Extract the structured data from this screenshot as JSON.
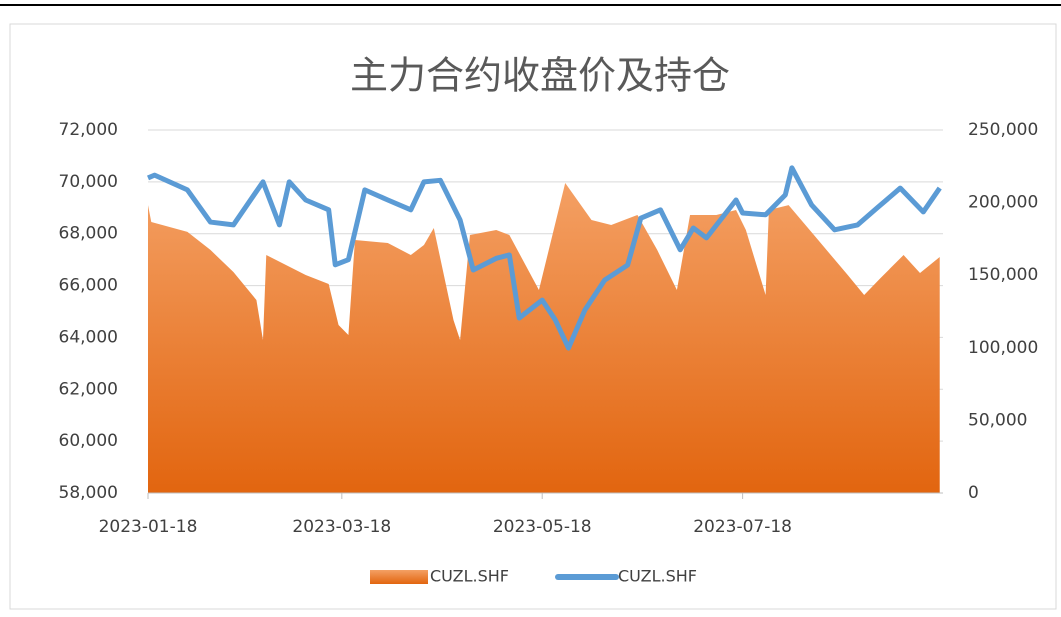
{
  "chart_data": {
    "type": "area+line",
    "title": "主力合约收盘价及持仓",
    "xlim": [
      "2023-01-18",
      "2023-09-17"
    ],
    "xticks": [
      "2023-01-18",
      "2023-03-18",
      "2023-05-18",
      "2023-07-18"
    ],
    "ylim": [
      58000,
      72000
    ],
    "yticks": [
      {
        "value": 58000,
        "label": "58,000"
      },
      {
        "value": 60000,
        "label": "60,000"
      },
      {
        "value": 62000,
        "label": "62,000"
      },
      {
        "value": 64000,
        "label": "64,000"
      },
      {
        "value": 66000,
        "label": "66,000"
      },
      {
        "value": 68000,
        "label": "68,000"
      },
      {
        "value": 70000,
        "label": "70,000"
      },
      {
        "value": 72000,
        "label": "72,000"
      }
    ],
    "y2lim": [
      0,
      250000
    ],
    "y2ticks": [
      0,
      {
        "value": 50000,
        "label": "50,000"
      },
      {
        "value": 100000,
        "label": "100,000"
      },
      {
        "value": 150000,
        "label": "150,000"
      },
      {
        "value": 200000,
        "label": "200,000"
      },
      {
        "value": 250000,
        "label": "250,000"
      }
    ],
    "series": [
      {
        "name": "CUZL.SHF",
        "type": "area",
        "axis": "y2",
        "color": "#ee7b30",
        "x": [
          "2023-01-18",
          "2023-01-19",
          "2023-01-30",
          "2023-02-06",
          "2023-02-13",
          "2023-02-20",
          "2023-02-22",
          "2023-02-23",
          "2023-03-07",
          "2023-03-14",
          "2023-03-17",
          "2023-03-20",
          "2023-03-22",
          "2023-04-01",
          "2023-04-08",
          "2023-04-12",
          "2023-04-15",
          "2023-04-21",
          "2023-04-23",
          "2023-04-26",
          "2023-05-04",
          "2023-05-08",
          "2023-05-17",
          "2023-05-25",
          "2023-06-02",
          "2023-06-08",
          "2023-06-16",
          "2023-06-22",
          "2023-06-28",
          "2023-07-02",
          "2023-07-10",
          "2023-07-16",
          "2023-07-19",
          "2023-07-25",
          "2023-07-26",
          "2023-08-01",
          "2023-08-10",
          "2023-08-19",
          "2023-08-24",
          "2023-08-29",
          "2023-09-05",
          "2023-09-10",
          "2023-09-16"
        ],
        "values": [
          198300,
          186600,
          179800,
          167400,
          152200,
          132900,
          105400,
          163900,
          150100,
          143900,
          115700,
          108800,
          174200,
          172200,
          163900,
          170800,
          182500,
          119100,
          105400,
          177700,
          181100,
          177700,
          139800,
          213500,
          188000,
          184600,
          191500,
          167400,
          139800,
          191500,
          191500,
          194900,
          181100,
          136400,
          194900,
          198300,
          174200,
          150100,
          136400,
          148100,
          163900,
          151500,
          162500
        ]
      },
      {
        "name": "CUZL.SHF",
        "type": "line",
        "axis": "y",
        "color": "#5b9bd5",
        "x": [
          "2023-01-18",
          "2023-01-20",
          "2023-01-30",
          "2023-02-06",
          "2023-02-13",
          "2023-02-22",
          "2023-02-27",
          "2023-03-02",
          "2023-03-07",
          "2023-03-14",
          "2023-03-16",
          "2023-03-20",
          "2023-03-25",
          "2023-04-01",
          "2023-04-08",
          "2023-04-12",
          "2023-04-17",
          "2023-04-23",
          "2023-04-27",
          "2023-05-04",
          "2023-05-08",
          "2023-05-11",
          "2023-05-18",
          "2023-05-22",
          "2023-05-26",
          "2023-05-31",
          "2023-06-06",
          "2023-06-13",
          "2023-06-17",
          "2023-06-23",
          "2023-06-29",
          "2023-07-03",
          "2023-07-07",
          "2023-07-16",
          "2023-07-18",
          "2023-07-25",
          "2023-07-31",
          "2023-08-02",
          "2023-08-08",
          "2023-08-15",
          "2023-08-22",
          "2023-08-28",
          "2023-09-04",
          "2023-09-11",
          "2023-09-16"
        ],
        "values": [
          70150,
          70260,
          69690,
          68450,
          68340,
          70000,
          68340,
          70000,
          69300,
          68920,
          66800,
          67000,
          69690,
          69300,
          68920,
          70000,
          70060,
          68530,
          66600,
          67050,
          67180,
          64750,
          65440,
          64670,
          63590,
          65060,
          66210,
          66790,
          68600,
          68920,
          67380,
          68220,
          67840,
          69300,
          68800,
          68730,
          69500,
          70540,
          69110,
          68150,
          68340,
          69000,
          69760,
          68840,
          69760
        ]
      }
    ]
  }
}
